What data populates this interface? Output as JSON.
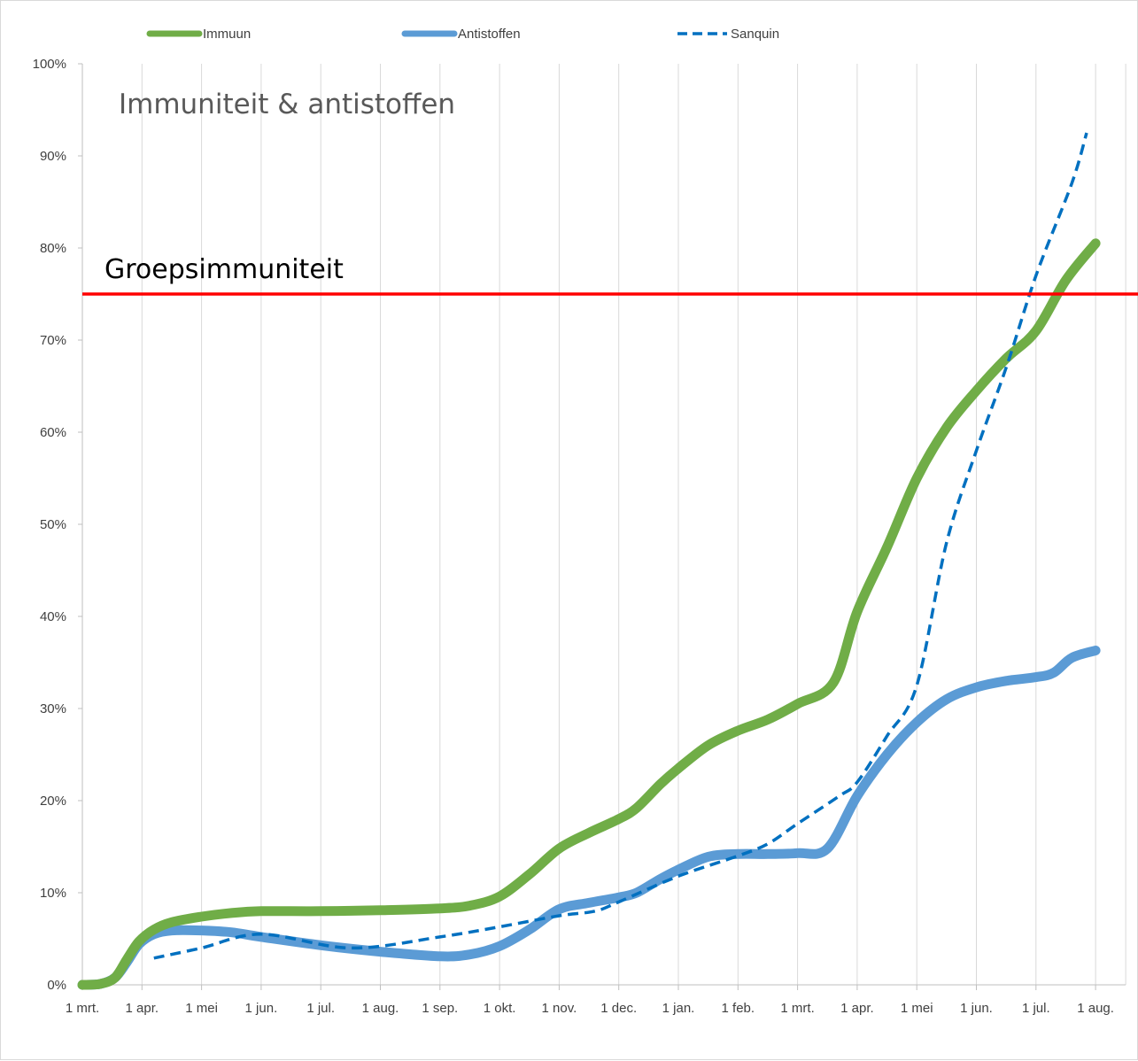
{
  "chart_data": {
    "type": "line",
    "title": "Immuniteit & antistoffen",
    "xlabel": "",
    "ylabel": "",
    "ylim": [
      0,
      100
    ],
    "x_tick_labels": [
      "1 mrt.",
      "1 apr.",
      "1 mei",
      "1 jun.",
      "1 jul.",
      "1 aug.",
      "1 sep.",
      "1 okt.",
      "1 nov.",
      "1 dec.",
      "1 jan.",
      "1 feb.",
      "1 mrt.",
      "1 apr.",
      "1 mei",
      "1 jun.",
      "1 jul.",
      "1 aug."
    ],
    "y_tick_labels": [
      "0%",
      "10%",
      "20%",
      "30%",
      "40%",
      "50%",
      "60%",
      "70%",
      "80%",
      "90%",
      "100%"
    ],
    "x_unit": "months since 1 mrt.",
    "grid": "vertical",
    "legend_position": "top",
    "reference_line": {
      "label": "Groepsimmuniteit",
      "value": 75,
      "color": "#ff0000"
    },
    "series": [
      {
        "name": "Immuun",
        "color": "#70ad47",
        "style": "solid-thick",
        "points": [
          [
            0,
            0
          ],
          [
            0.3,
            0.1
          ],
          [
            0.55,
            0.8
          ],
          [
            0.75,
            2.8
          ],
          [
            0.95,
            4.7
          ],
          [
            1.2,
            6.0
          ],
          [
            1.5,
            6.8
          ],
          [
            2,
            7.4
          ],
          [
            2.5,
            7.8
          ],
          [
            3,
            8.0
          ],
          [
            4,
            8.0
          ],
          [
            5,
            8.1
          ],
          [
            6,
            8.3
          ],
          [
            6.5,
            8.6
          ],
          [
            7,
            9.6
          ],
          [
            7.5,
            12.0
          ],
          [
            8,
            14.8
          ],
          [
            8.5,
            16.5
          ],
          [
            9,
            18.0
          ],
          [
            9.3,
            19.2
          ],
          [
            9.7,
            21.8
          ],
          [
            10,
            23.5
          ],
          [
            10.5,
            26.0
          ],
          [
            11,
            27.6
          ],
          [
            11.5,
            28.8
          ],
          [
            12,
            30.5
          ],
          [
            12.6,
            32.8
          ],
          [
            13,
            40.5
          ],
          [
            13.5,
            47.5
          ],
          [
            14,
            55.0
          ],
          [
            14.5,
            60.5
          ],
          [
            15,
            64.5
          ],
          [
            15.5,
            68.0
          ],
          [
            16,
            71.0
          ],
          [
            16.5,
            76.5
          ],
          [
            17,
            80.5
          ]
        ]
      },
      {
        "name": "Antistoffen",
        "color": "#5b9bd5",
        "style": "solid-thick",
        "points": [
          [
            0,
            0
          ],
          [
            0.3,
            0.1
          ],
          [
            0.55,
            0.8
          ],
          [
            0.75,
            2.5
          ],
          [
            0.95,
            4.4
          ],
          [
            1.2,
            5.5
          ],
          [
            1.5,
            5.9
          ],
          [
            2,
            5.9
          ],
          [
            2.5,
            5.7
          ],
          [
            3,
            5.2
          ],
          [
            4,
            4.3
          ],
          [
            5,
            3.6
          ],
          [
            6,
            3.1
          ],
          [
            6.5,
            3.3
          ],
          [
            7,
            4.2
          ],
          [
            7.5,
            6.0
          ],
          [
            8,
            8.2
          ],
          [
            8.5,
            8.9
          ],
          [
            9,
            9.5
          ],
          [
            9.3,
            10.0
          ],
          [
            9.7,
            11.5
          ],
          [
            10,
            12.5
          ],
          [
            10.5,
            13.9
          ],
          [
            11,
            14.2
          ],
          [
            11.5,
            14.2
          ],
          [
            12,
            14.3
          ],
          [
            12.5,
            14.8
          ],
          [
            13,
            20.5
          ],
          [
            13.5,
            25.0
          ],
          [
            14,
            28.5
          ],
          [
            14.5,
            31.0
          ],
          [
            15,
            32.3
          ],
          [
            15.5,
            33.0
          ],
          [
            16,
            33.4
          ],
          [
            16.3,
            33.9
          ],
          [
            16.6,
            35.5
          ],
          [
            17,
            36.3
          ]
        ]
      },
      {
        "name": "Sanquin",
        "color": "#0070c0",
        "style": "dashed",
        "points": [
          [
            1.2,
            2.9
          ],
          [
            2,
            4.0
          ],
          [
            3,
            5.5
          ],
          [
            4.5,
            4.0
          ],
          [
            6,
            5.2
          ],
          [
            7,
            6.3
          ],
          [
            8,
            7.5
          ],
          [
            8.6,
            8.0
          ],
          [
            9,
            9.0
          ],
          [
            10,
            11.8
          ],
          [
            11,
            14.0
          ],
          [
            11.5,
            15.3
          ],
          [
            12,
            17.5
          ],
          [
            12.7,
            20.5
          ],
          [
            13,
            22.0
          ],
          [
            13.5,
            27.0
          ],
          [
            14,
            32.5
          ],
          [
            14.5,
            48.0
          ],
          [
            15,
            58.0
          ],
          [
            15.5,
            67.0
          ],
          [
            16,
            77.0
          ],
          [
            16.6,
            87.0
          ],
          [
            16.85,
            92.5
          ]
        ]
      }
    ]
  }
}
